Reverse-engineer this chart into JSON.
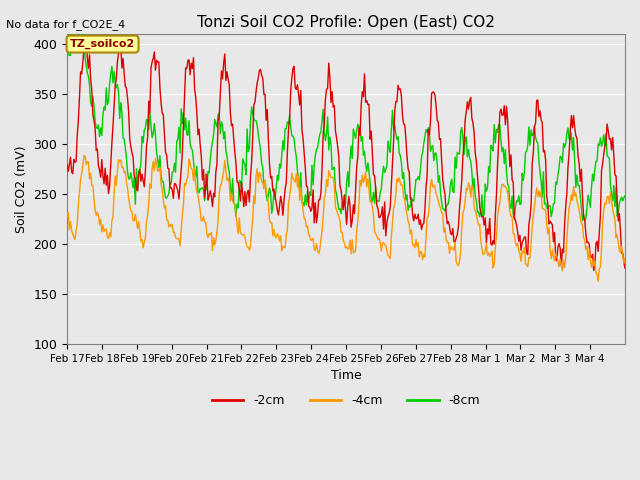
{
  "title": "Tonzi Soil CO2 Profile: Open (East) CO2",
  "subtitle": "No data for f_CO2E_4",
  "ylabel": "Soil CO2 (mV)",
  "xlabel": "Time",
  "ylim": [
    100,
    410
  ],
  "yticks": [
    100,
    150,
    200,
    250,
    300,
    350,
    400
  ],
  "colors": {
    "2cm": "#dd0000",
    "4cm": "#ff9900",
    "8cm": "#00cc00"
  },
  "legend_labels": [
    "-2cm",
    "-4cm",
    "-8cm"
  ],
  "legend_colors": [
    "#dd0000",
    "#ff9900",
    "#00cc00"
  ],
  "bg_color": "#e8e8e8",
  "plot_bg_color": "#e8e8e8",
  "box_color": "#ffff99",
  "box_label": "TZ_soilco2",
  "x_labels": [
    "Feb 17",
    "Feb 18",
    "Feb 19",
    "Feb 20",
    "Feb 21",
    "Feb 22",
    "Feb 23",
    "Feb 24",
    "Feb 25",
    "Feb 26",
    "Feb 27",
    "Feb 28",
    "Mar 1",
    "Mar 2",
    "Mar 3",
    "Mar 4"
  ],
  "n_points": 500
}
